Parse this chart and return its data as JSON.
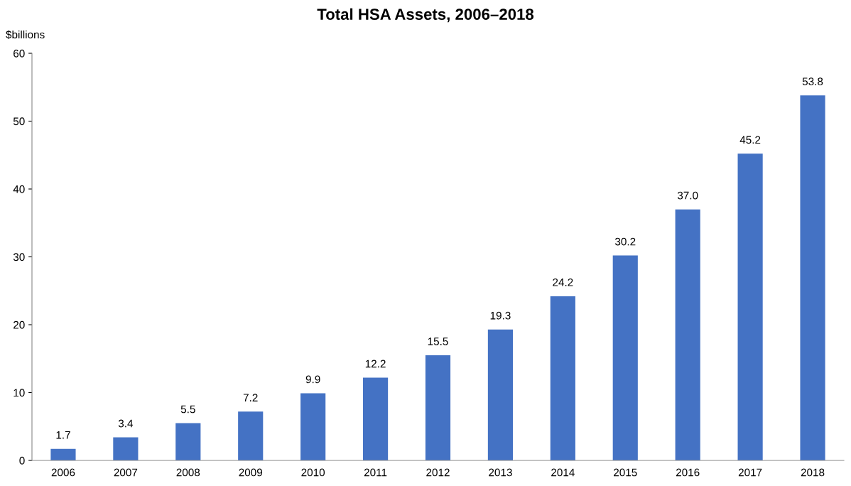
{
  "chart_data": {
    "type": "bar",
    "title": "Total HSA Assets, 2006–2018",
    "ylabel": "$billions",
    "categories": [
      "2006",
      "2007",
      "2008",
      "2009",
      "2010",
      "2011",
      "2012",
      "2013",
      "2014",
      "2015",
      "2016",
      "2017",
      "2018"
    ],
    "values": [
      1.7,
      3.4,
      5.5,
      7.2,
      9.9,
      12.2,
      15.5,
      19.3,
      24.2,
      30.2,
      37.0,
      45.2,
      53.8
    ],
    "value_labels": [
      "1.7",
      "3.4",
      "5.5",
      "7.2",
      "9.9",
      "12.2",
      "15.5",
      "19.3",
      "24.2",
      "30.2",
      "37.0",
      "45.2",
      "53.8"
    ],
    "color": "#4472c4",
    "ylim": [
      0,
      60
    ],
    "yticks": [
      0,
      10,
      20,
      30,
      40,
      50,
      60
    ],
    "grid": false
  }
}
